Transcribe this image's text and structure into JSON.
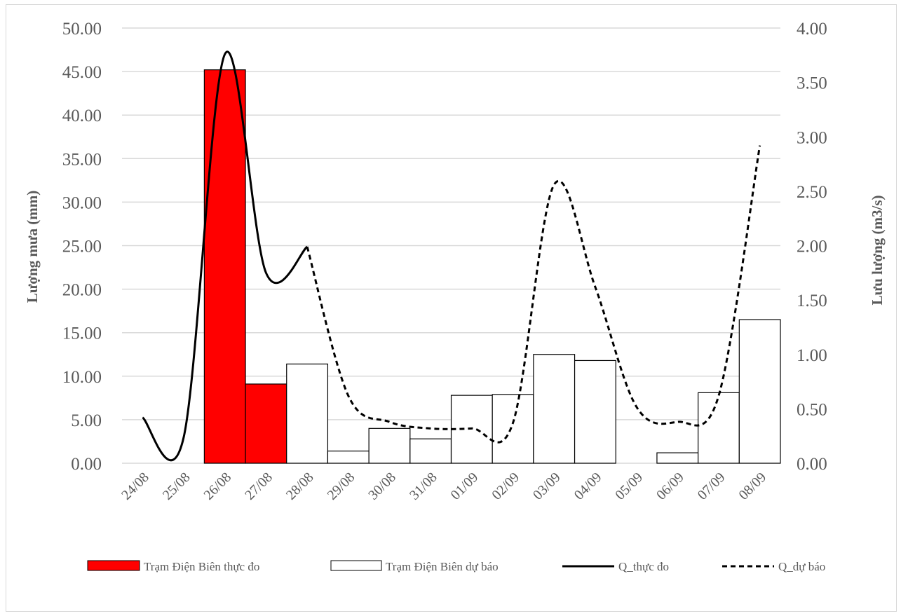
{
  "chart_data": {
    "type": "bar",
    "categories": [
      "24/08",
      "25/08",
      "26/08",
      "27/08",
      "28/08",
      "29/08",
      "30/08",
      "31/08",
      "01/09",
      "02/09",
      "03/09",
      "04/09",
      "05/09",
      "06/09",
      "07/09",
      "08/09"
    ],
    "ylabel_left": "Lượng mưa (mm)",
    "ylabel_right": "Lưu lượng (m3/s)",
    "ylim_left": [
      0,
      50
    ],
    "ylim_right": [
      0,
      4
    ],
    "yticks_left": [
      "0.00",
      "5.00",
      "10.00",
      "15.00",
      "20.00",
      "25.00",
      "30.00",
      "35.00",
      "40.00",
      "45.00",
      "50.00"
    ],
    "yticks_right": [
      "0.00",
      "0.50",
      "1.00",
      "1.50",
      "2.00",
      "2.50",
      "3.00",
      "3.50",
      "4.00"
    ],
    "grid": true,
    "legend_position": "bottom",
    "series": [
      {
        "name": "Trạm Điện Biên thực đo",
        "kind": "bar",
        "axis": "left",
        "color": "#ff0000",
        "values": [
          null,
          null,
          45.2,
          9.1,
          null,
          null,
          null,
          null,
          null,
          null,
          null,
          null,
          null,
          null,
          null,
          null
        ]
      },
      {
        "name": "Trạm Điện Biên dự báo",
        "kind": "bar",
        "axis": "left",
        "color": "#ffffff",
        "values": [
          null,
          null,
          null,
          null,
          11.4,
          1.4,
          4.0,
          2.8,
          7.8,
          7.9,
          12.5,
          11.8,
          0.0,
          1.2,
          8.1,
          16.5
        ]
      },
      {
        "name": "Q_thực đo",
        "kind": "line",
        "axis": "right",
        "color": "#000000",
        "dash": "solid",
        "values": [
          0.42,
          0.24,
          3.76,
          1.75,
          1.99,
          null,
          null,
          null,
          null,
          null,
          null,
          null,
          null,
          null,
          null,
          null
        ]
      },
      {
        "name": "Q_dự báo",
        "kind": "line",
        "axis": "right",
        "color": "#000000",
        "dash": "dashed",
        "values": [
          null,
          null,
          null,
          null,
          1.99,
          0.62,
          0.38,
          0.32,
          0.32,
          0.37,
          2.56,
          1.62,
          0.52,
          0.38,
          0.62,
          2.92
        ]
      }
    ]
  }
}
